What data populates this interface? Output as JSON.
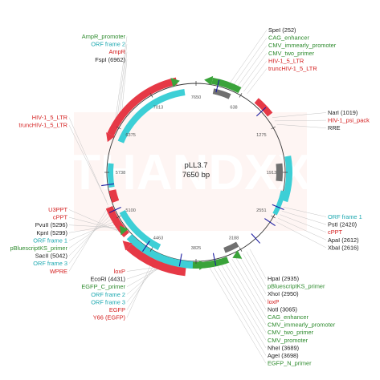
{
  "map": {
    "name": "pLL3.7",
    "size": "7650 bp"
  },
  "colors": {
    "red": "#e63946",
    "teal": "#3dcfd6",
    "green": "#3aa33a",
    "gray": "#707070",
    "blue": "#1a1aa0",
    "label_red": "#d42020",
    "label_teal": "#1ca8b0",
    "label_green": "#2e8b2e",
    "label_black": "#222222"
  },
  "ticks": [
    "7650",
    "638",
    "1275",
    "1913",
    "2551",
    "3188",
    "3825",
    "4463",
    "5100",
    "5738",
    "6375",
    "7013"
  ],
  "labels_top_left": [
    {
      "text": "AmpR_promoter",
      "color": "green"
    },
    {
      "text": "ORF frame 2",
      "color": "teal"
    },
    {
      "text": "AmpR",
      "color": "red"
    },
    {
      "text": "FspI (6962)",
      "color": "blue"
    }
  ],
  "labels_top_right": [
    {
      "text": "SpeI (252)",
      "color": "blue"
    },
    {
      "text": "CAG_enhancer",
      "color": "green"
    },
    {
      "text": "CMV_immearly_promoter",
      "color": "green"
    },
    {
      "text": "CMV_two_primer",
      "color": "green"
    },
    {
      "text": "HIV-1_5_LTR",
      "color": "red"
    },
    {
      "text": "truncHIV-1_5_LTR",
      "color": "red"
    }
  ],
  "labels_left_mid": [
    {
      "text": "HIV-1_5_LTR",
      "color": "red"
    },
    {
      "text": "truncHIV-1_5_LTR",
      "color": "red"
    }
  ],
  "labels_right_mid": [
    {
      "text": "NarI (1019)",
      "color": "blue"
    },
    {
      "text": "HIV-1_psi_pack",
      "color": "red"
    },
    {
      "text": "RRE",
      "color": "black"
    }
  ],
  "labels_left_low": [
    {
      "text": "U3PPT",
      "color": "red"
    },
    {
      "text": "cPPT",
      "color": "red"
    },
    {
      "text": "PvuII (5296)",
      "color": "blue"
    },
    {
      "text": "KpnI (5299)",
      "color": "blue"
    },
    {
      "text": "ORF frame 1",
      "color": "teal"
    },
    {
      "text": "pBluescriptKS_primer",
      "color": "green"
    },
    {
      "text": "SacII (5042)",
      "color": "blue"
    },
    {
      "text": "ORF frame 3",
      "color": "teal"
    },
    {
      "text": "WPRE",
      "color": "red"
    }
  ],
  "labels_right_low": [
    {
      "text": "ORF frame 1",
      "color": "teal"
    },
    {
      "text": "PstI (2420)",
      "color": "blue"
    },
    {
      "text": "cPPT",
      "color": "red"
    },
    {
      "text": "ApaI (2612)",
      "color": "blue"
    },
    {
      "text": "XbaI (2616)",
      "color": "blue"
    }
  ],
  "labels_bottom_left": [
    {
      "text": "loxP",
      "color": "red"
    },
    {
      "text": "EcoRI (4431)",
      "color": "blue"
    },
    {
      "text": "EGFP_C_primer",
      "color": "green"
    },
    {
      "text": "ORF frame 2",
      "color": "teal"
    },
    {
      "text": "ORF frame 3",
      "color": "teal"
    },
    {
      "text": "EGFP",
      "color": "red"
    },
    {
      "text": "Y66 (EGFP)",
      "color": "red"
    }
  ],
  "labels_bottom_right": [
    {
      "text": "HpaI (2935)",
      "color": "blue"
    },
    {
      "text": "pBluescriptKS_primer",
      "color": "green"
    },
    {
      "text": "XhoI (2950)",
      "color": "blue"
    },
    {
      "text": "loxP",
      "color": "red"
    },
    {
      "text": "NotI (3065)",
      "color": "blue"
    },
    {
      "text": "CAG_enhancer",
      "color": "green"
    },
    {
      "text": "CMV_immearly_promoter",
      "color": "green"
    },
    {
      "text": "CMV_two_primer",
      "color": "green"
    },
    {
      "text": "CMV_promoter",
      "color": "green"
    },
    {
      "text": "NheI (3689)",
      "color": "blue"
    },
    {
      "text": "AgeI (3698)",
      "color": "blue"
    },
    {
      "text": "EGFP_N_primer",
      "color": "green"
    }
  ],
  "watermark": "THANDXX"
}
